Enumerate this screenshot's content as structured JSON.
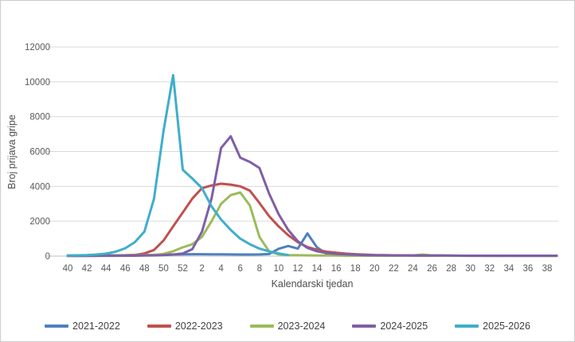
{
  "chart": {
    "y_axis_title": "Broj prijava gripe",
    "x_axis_title": "Kalendarski tjedan",
    "grid_color": "#d9d9d9",
    "axis_line_color": "#bfbfbf",
    "tick_color": "#595959"
  },
  "chart_data": {
    "type": "line",
    "title": "",
    "xlabel": "Kalendarski tjedan",
    "ylabel": "Broj prijava gripe",
    "ylim": [
      0,
      12000
    ],
    "y_tick_step": 2000,
    "y_tick_labels": [
      "0",
      "2000",
      "4000",
      "6000",
      "8000",
      "10000",
      "12000"
    ],
    "grid": true,
    "legend_position": "bottom",
    "categories": [
      40,
      41,
      42,
      43,
      44,
      45,
      46,
      47,
      48,
      49,
      50,
      51,
      52,
      1,
      2,
      3,
      4,
      5,
      6,
      7,
      8,
      9,
      10,
      11,
      12,
      13,
      14,
      15,
      16,
      17,
      18,
      19,
      20,
      21,
      22,
      23,
      24,
      25,
      26,
      27,
      28,
      29,
      30,
      31,
      32,
      33,
      34,
      35,
      36,
      37,
      38,
      39
    ],
    "x_tick_labels": [
      40,
      42,
      44,
      46,
      48,
      50,
      52,
      2,
      4,
      6,
      8,
      10,
      12,
      14,
      16,
      18,
      20,
      22,
      24,
      26,
      28,
      30,
      32,
      34,
      36,
      38
    ],
    "series": [
      {
        "name": "2021-2022",
        "color": "#4F81BD",
        "values": [
          30,
          30,
          35,
          35,
          40,
          45,
          50,
          55,
          60,
          70,
          80,
          90,
          100,
          110,
          110,
          105,
          100,
          95,
          90,
          90,
          95,
          120,
          420,
          580,
          430,
          1300,
          500,
          130,
          90,
          70,
          60,
          50,
          45,
          40,
          40,
          35,
          35,
          30,
          30,
          30,
          25,
          25,
          25,
          25,
          20,
          20,
          20,
          20,
          20,
          20,
          20,
          20
        ]
      },
      {
        "name": "2022-2023",
        "color": "#C0504D",
        "values": [
          20,
          20,
          25,
          25,
          30,
          35,
          45,
          70,
          150,
          350,
          900,
          1700,
          2500,
          3300,
          3900,
          4050,
          4150,
          4100,
          4000,
          3750,
          3050,
          2300,
          1700,
          1200,
          800,
          520,
          360,
          250,
          190,
          140,
          110,
          85,
          65,
          55,
          45,
          40,
          35,
          30,
          30,
          25,
          25,
          25,
          20,
          20,
          20,
          20,
          20,
          20,
          20,
          20,
          20,
          20
        ]
      },
      {
        "name": "2023-2024",
        "color": "#9BBB59",
        "values": [
          20,
          20,
          20,
          25,
          25,
          30,
          35,
          40,
          50,
          70,
          130,
          280,
          500,
          680,
          1100,
          2000,
          3000,
          3500,
          3650,
          2900,
          1100,
          280,
          100,
          60,
          50,
          40,
          35,
          30,
          30,
          25,
          25,
          25,
          25,
          25,
          25,
          25,
          40,
          90,
          40,
          25,
          20,
          20,
          20,
          20,
          20,
          20,
          20,
          20,
          20,
          20,
          20,
          20
        ]
      },
      {
        "name": "2024-2025",
        "color": "#7E5FA5",
        "values": [
          15,
          15,
          15,
          15,
          20,
          20,
          25,
          25,
          30,
          40,
          60,
          90,
          150,
          400,
          1400,
          3300,
          6200,
          6870,
          5650,
          5400,
          5050,
          3600,
          2400,
          1500,
          850,
          470,
          280,
          180,
          130,
          100,
          80,
          60,
          50,
          45,
          40,
          40,
          35,
          35,
          30,
          30,
          30,
          25,
          25,
          25,
          25,
          25,
          25,
          25,
          25,
          25,
          25,
          25
        ]
      },
      {
        "name": "2025-2026",
        "color": "#3FAECB",
        "values": [
          30,
          45,
          60,
          90,
          140,
          250,
          450,
          800,
          1400,
          3300,
          7200,
          10380,
          4950,
          4450,
          3900,
          2850,
          2100,
          1500,
          1000,
          680,
          430,
          270,
          150,
          60,
          null,
          null,
          null,
          null,
          null,
          null,
          null,
          null,
          null,
          null,
          null,
          null,
          null,
          null,
          null,
          null,
          null,
          null,
          null,
          null,
          null,
          null,
          null,
          null,
          null,
          null,
          null,
          null
        ]
      }
    ]
  }
}
